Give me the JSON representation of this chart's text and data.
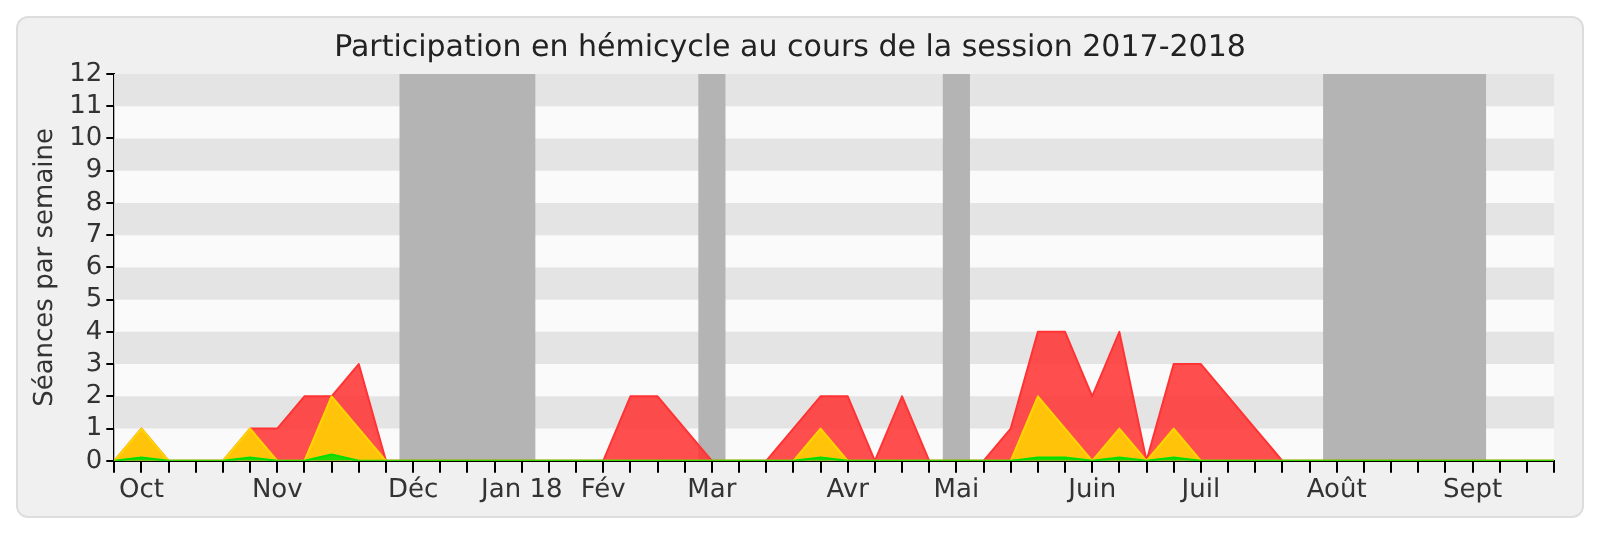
{
  "chart_data": {
    "type": "area",
    "title": "Participation en hémicycle au cours de la session 2017-2018",
    "ylabel": "Séances par semaine",
    "categories": [
      null,
      "Oct",
      null,
      null,
      null,
      null,
      "Nov",
      null,
      null,
      null,
      null,
      "Déc",
      null,
      null,
      null,
      "Jan 18",
      null,
      null,
      "Fév",
      null,
      null,
      null,
      "Mar",
      null,
      null,
      null,
      null,
      "Avr",
      null,
      null,
      null,
      "Mai",
      null,
      null,
      null,
      null,
      "Juin",
      null,
      null,
      null,
      "Juil",
      null,
      null,
      null,
      null,
      "Août",
      null,
      null,
      null,
      null,
      "Sept",
      null,
      null,
      null
    ],
    "series": [
      {
        "color": "#ff3333",
        "values": [
          0,
          1,
          0,
          0,
          0,
          1,
          1,
          2,
          2,
          3,
          0,
          0,
          0,
          0,
          0,
          0,
          0,
          0,
          0,
          2,
          2,
          1,
          0,
          0,
          0,
          1,
          2,
          2,
          0,
          2,
          0,
          0,
          0,
          1,
          4,
          4,
          2,
          4,
          0,
          3,
          3,
          2,
          1,
          0,
          0,
          0,
          0,
          0,
          0,
          0,
          0,
          0,
          0,
          0
        ]
      },
      {
        "color": "#ffd700",
        "values": [
          0,
          1,
          0,
          0,
          0,
          1,
          0,
          0,
          2,
          1,
          0,
          0,
          0,
          0,
          0,
          0,
          0,
          0,
          0,
          0,
          0,
          0,
          0,
          0,
          0,
          0,
          1,
          0,
          0,
          0,
          0,
          0,
          0,
          0,
          2,
          1,
          0,
          1,
          0,
          1,
          0,
          0,
          0,
          0,
          0,
          0,
          0,
          0,
          0,
          0,
          0,
          0,
          0,
          0
        ]
      },
      {
        "color": "#00dd00",
        "values": [
          0,
          0.1,
          0,
          0,
          0,
          0.1,
          0,
          0,
          0.2,
          0,
          0,
          0,
          0,
          0,
          0,
          0,
          0,
          0,
          0,
          0,
          0,
          0,
          0,
          0,
          0,
          0,
          0.1,
          0,
          0,
          0,
          0,
          0,
          0,
          0,
          0.1,
          0.1,
          0,
          0.1,
          0,
          0.1,
          0,
          0,
          0,
          0,
          0,
          0,
          0,
          0,
          0,
          0,
          0,
          0,
          0,
          0
        ]
      }
    ],
    "ylim": [
      0,
      12
    ],
    "yticks": [
      0,
      1,
      2,
      3,
      4,
      5,
      6,
      7,
      8,
      9,
      10,
      11,
      12
    ],
    "bands": [
      {
        "axis": "x",
        "from": "Déc",
        "to": "Jan 18",
        "color": "#b4b4b4"
      },
      {
        "axis": "x",
        "from": "Mar",
        "to": "Mar",
        "color": "#b4b4b4"
      },
      {
        "axis": "x",
        "from": "Mai",
        "to": "Mai",
        "color": "#b4b4b4"
      },
      {
        "axis": "x",
        "from": "Août",
        "to": "Sept",
        "color": "#b4b4b4"
      }
    ],
    "legend": false,
    "marker": "none"
  }
}
